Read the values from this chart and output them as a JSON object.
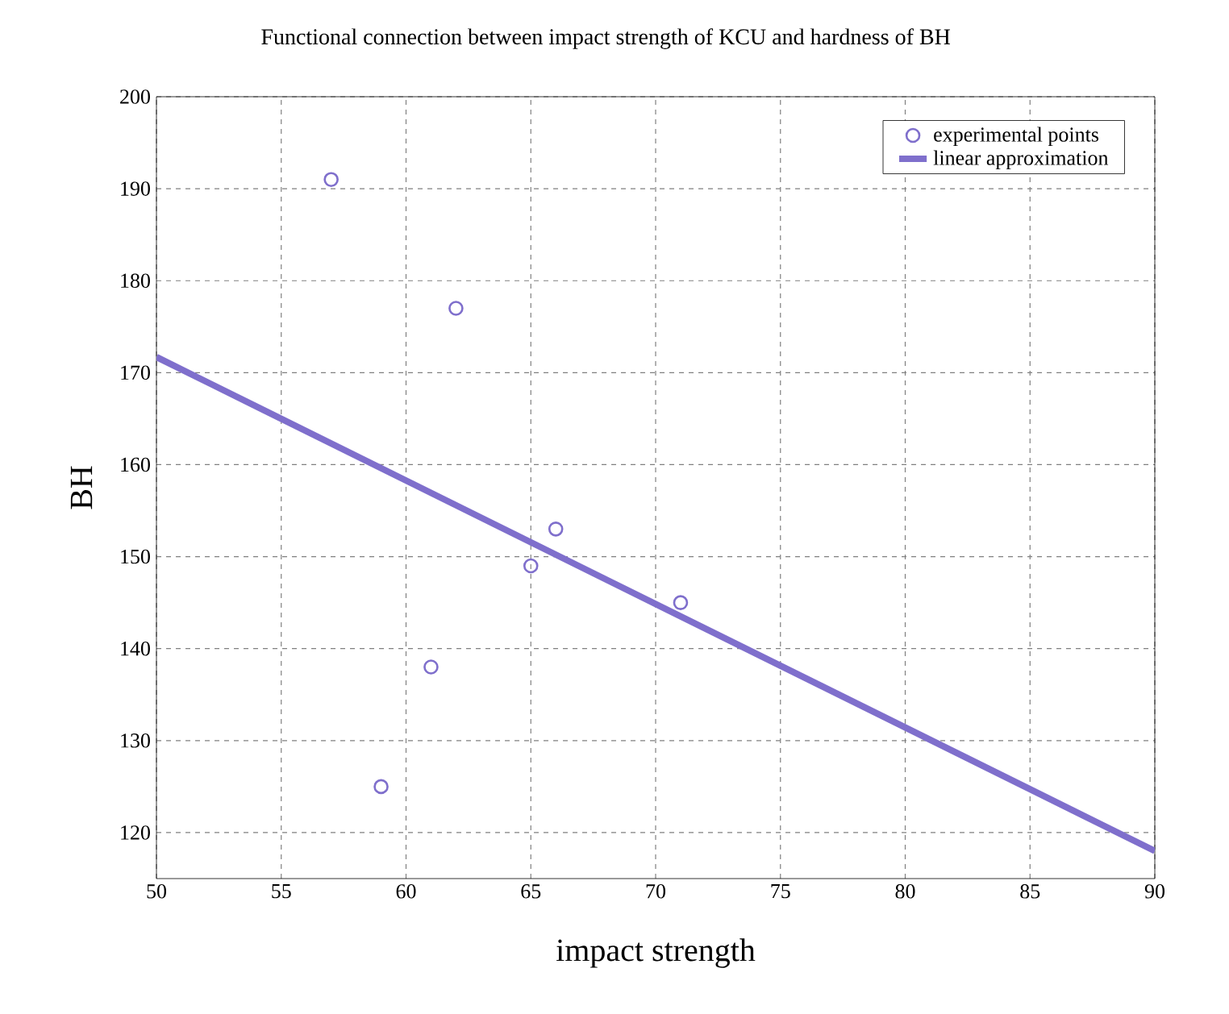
{
  "chart_data": {
    "type": "scatter",
    "title": "Functional connection between impact strength of KCU and hardness of BH",
    "xlabel": "impact strength",
    "ylabel": "BH",
    "xlim": [
      50,
      90
    ],
    "ylim": [
      115,
      200
    ],
    "xticks": [
      50,
      55,
      60,
      65,
      70,
      75,
      80,
      85,
      90
    ],
    "yticks": [
      120,
      130,
      140,
      150,
      160,
      170,
      180,
      190,
      200
    ],
    "grid": true,
    "legend": "top right",
    "series": [
      {
        "name": "experimental points",
        "color": "#7f6fcc",
        "marker": "circle",
        "x": [
          57,
          62,
          66,
          65,
          71,
          61,
          59
        ],
        "values": [
          191,
          177,
          153,
          149,
          145,
          138,
          125
        ]
      },
      {
        "name": "linear approximation",
        "type": "line",
        "marker": "none",
        "color": "#7f6fcc",
        "x": [
          50,
          90
        ],
        "values": [
          171.7,
          118
        ]
      }
    ]
  }
}
